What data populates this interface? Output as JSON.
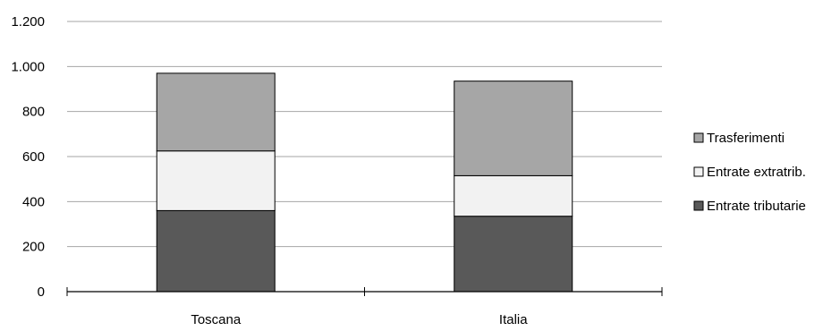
{
  "chart_data": {
    "type": "bar",
    "stacked": true,
    "title": "",
    "xlabel": "",
    "ylabel": "",
    "categories": [
      "Toscana",
      "Italia"
    ],
    "ylim": [
      0,
      1200
    ],
    "y_ticks": [
      0,
      200,
      400,
      600,
      800,
      1000,
      1200
    ],
    "y_tick_labels": [
      "0",
      "200",
      "400",
      "600",
      "800",
      "1.000",
      "1.200"
    ],
    "grid": "horizontal",
    "legend_position": "right",
    "series": [
      {
        "name": "Entrate tributarie",
        "values": [
          360,
          335
        ],
        "color": "#595959"
      },
      {
        "name": "Entrate extratrib.",
        "values": [
          265,
          180
        ],
        "color": "#f2f2f2"
      },
      {
        "name": "Trasferimenti",
        "values": [
          345,
          420
        ],
        "color": "#a6a6a6"
      }
    ],
    "legend_order": [
      2,
      1,
      0
    ]
  }
}
